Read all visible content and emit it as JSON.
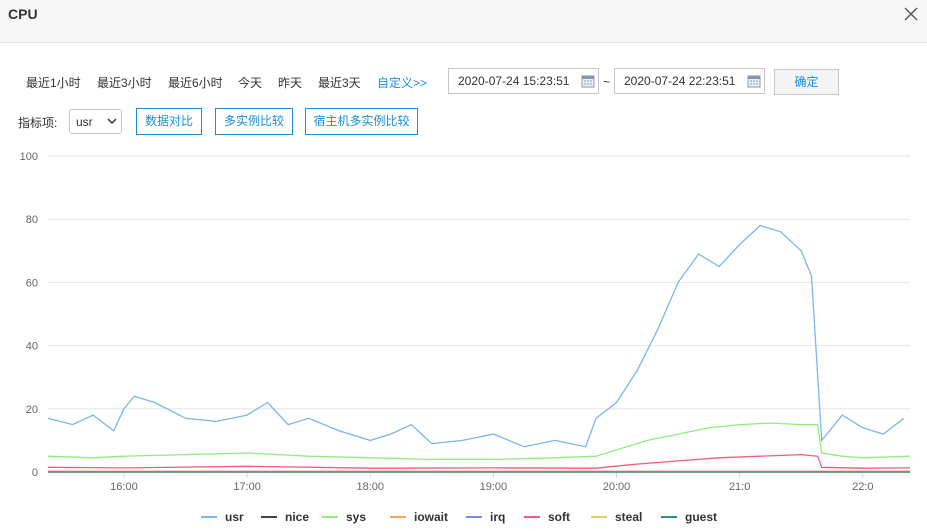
{
  "window": {
    "title": "CPU"
  },
  "toolbar": {
    "ranges": [
      "最近1小时",
      "最近3小时",
      "最近6小时",
      "今天",
      "昨天",
      "最近3天",
      "自定义>>"
    ],
    "start_date": "2020-07-24 15:23:51",
    "separator": "~",
    "end_date": "2020-07-24 22:23:51",
    "confirm_label": "确定"
  },
  "metric": {
    "label": "指标项:",
    "selected": "usr",
    "buttons": [
      "数据对比",
      "多实例比较",
      "宿主机多实例比较"
    ]
  },
  "chart_data": {
    "type": "line",
    "ylim": [
      0,
      100
    ],
    "yticks": [
      0,
      20,
      40,
      60,
      80,
      100
    ],
    "xlim": [
      "15:23",
      "22:23"
    ],
    "xticks": [
      "16:00",
      "17:00",
      "18:00",
      "19:00",
      "20:00",
      "21:00",
      "22:00"
    ],
    "xtick_labels": [
      "16:00",
      "17:00",
      "18:00",
      "19:00",
      "20:00",
      "21:0",
      "22:0"
    ],
    "grid": true,
    "legend": "bottom",
    "series": [
      {
        "name": "usr",
        "color": "#7cb5ec",
        "x": [
          "15:23",
          "15:35",
          "15:45",
          "15:55",
          "16:00",
          "16:05",
          "16:15",
          "16:30",
          "16:45",
          "17:00",
          "17:10",
          "17:20",
          "17:30",
          "17:45",
          "18:00",
          "18:10",
          "18:20",
          "18:30",
          "18:45",
          "19:00",
          "19:15",
          "19:30",
          "19:45",
          "19:50",
          "20:00",
          "20:10",
          "20:20",
          "20:30",
          "20:40",
          "20:50",
          "21:00",
          "21:10",
          "21:20",
          "21:30",
          "21:35",
          "21:40",
          "21:50",
          "22:00",
          "22:10",
          "22:20"
        ],
        "y": [
          17,
          15,
          18,
          13,
          20,
          24,
          22,
          17,
          16,
          18,
          22,
          15,
          17,
          13,
          10,
          12,
          15,
          9,
          10,
          12,
          8,
          10,
          8,
          17,
          22,
          32,
          45,
          60,
          69,
          65,
          72,
          78,
          76,
          70,
          62,
          10,
          18,
          14,
          12,
          17
        ]
      },
      {
        "name": "nice",
        "color": "#434348",
        "x": [
          "15:23",
          "22:23"
        ],
        "y": [
          0,
          0
        ]
      },
      {
        "name": "sys",
        "color": "#90ed7d",
        "x": [
          "15:23",
          "15:45",
          "16:00",
          "16:30",
          "17:00",
          "17:30",
          "18:00",
          "18:30",
          "19:00",
          "19:30",
          "19:50",
          "20:00",
          "20:15",
          "20:30",
          "20:45",
          "21:00",
          "21:15",
          "21:30",
          "21:38",
          "21:40",
          "21:50",
          "22:00",
          "22:23"
        ],
        "y": [
          5,
          4.5,
          5,
          5.5,
          6,
          5,
          4.5,
          4,
          4,
          4.5,
          5,
          7,
          10,
          12,
          14,
          15,
          15.5,
          15,
          15,
          6,
          5,
          4.5,
          5
        ]
      },
      {
        "name": "iowait",
        "color": "#f7a35c",
        "x": [
          "15:23",
          "22:23"
        ],
        "y": [
          0.3,
          0.3
        ]
      },
      {
        "name": "irq",
        "color": "#8085e9",
        "x": [
          "15:23",
          "22:23"
        ],
        "y": [
          0,
          0
        ]
      },
      {
        "name": "soft",
        "color": "#f15c80",
        "x": [
          "15:23",
          "16:00",
          "17:00",
          "18:00",
          "19:00",
          "19:50",
          "20:10",
          "20:30",
          "20:50",
          "21:10",
          "21:30",
          "21:38",
          "21:40",
          "22:00",
          "22:23"
        ],
        "y": [
          1.5,
          1.3,
          1.8,
          1.2,
          1.3,
          1.2,
          2.5,
          3.5,
          4.5,
          5,
          5.5,
          5,
          1.5,
          1.2,
          1.3
        ]
      },
      {
        "name": "steal",
        "color": "#e4d354",
        "x": [
          "15:23",
          "22:23"
        ],
        "y": [
          0,
          0
        ]
      },
      {
        "name": "guest",
        "color": "#2b908f",
        "x": [
          "15:23",
          "22:23"
        ],
        "y": [
          0,
          0
        ]
      }
    ]
  }
}
